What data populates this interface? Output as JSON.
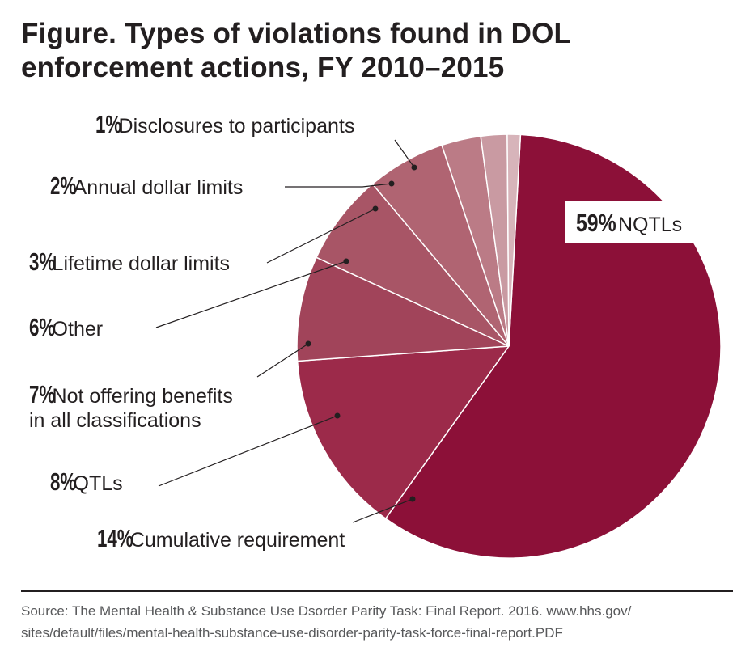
{
  "chart_data": {
    "type": "pie",
    "title_lines": [
      "Figure. Types of violations found in DOL",
      "enforcement actions, FY 2010–2015"
    ],
    "slices": [
      {
        "pct_label": "59%",
        "label_lines": [
          "NQTLs"
        ],
        "value": 59,
        "color": "#8c1038"
      },
      {
        "pct_label": "14%",
        "label_lines": [
          "Cumulative requirement"
        ],
        "value": 14,
        "color": "#9c2a4a"
      },
      {
        "pct_label": "8%",
        "label_lines": [
          "QTLs"
        ],
        "value": 8,
        "color": "#a1445a"
      },
      {
        "pct_label": "7%",
        "label_lines": [
          "Not offering benefits",
          "in all classifications"
        ],
        "value": 7,
        "color": "#a85566"
      },
      {
        "pct_label": "6%",
        "label_lines": [
          "Other"
        ],
        "value": 6,
        "color": "#b06472"
      },
      {
        "pct_label": "3%",
        "label_lines": [
          "Lifetime dollar limits"
        ],
        "value": 3,
        "color": "#bb7b86"
      },
      {
        "pct_label": "2%",
        "label_lines": [
          "Annual dollar limits"
        ],
        "value": 2,
        "color": "#c99aa2"
      },
      {
        "pct_label": "1%",
        "label_lines": [
          "Disclosures to participants"
        ],
        "value": 1,
        "color": "#d7b4ba"
      }
    ]
  },
  "source_lines": [
    "Source: The Mental Health & Substance Use Dsorder Parity Task: Final Report. 2016. www.hhs.gov/",
    "sites/default/files/mental-health-substance-use-disorder-parity-task-force-final-report.PDF"
  ]
}
